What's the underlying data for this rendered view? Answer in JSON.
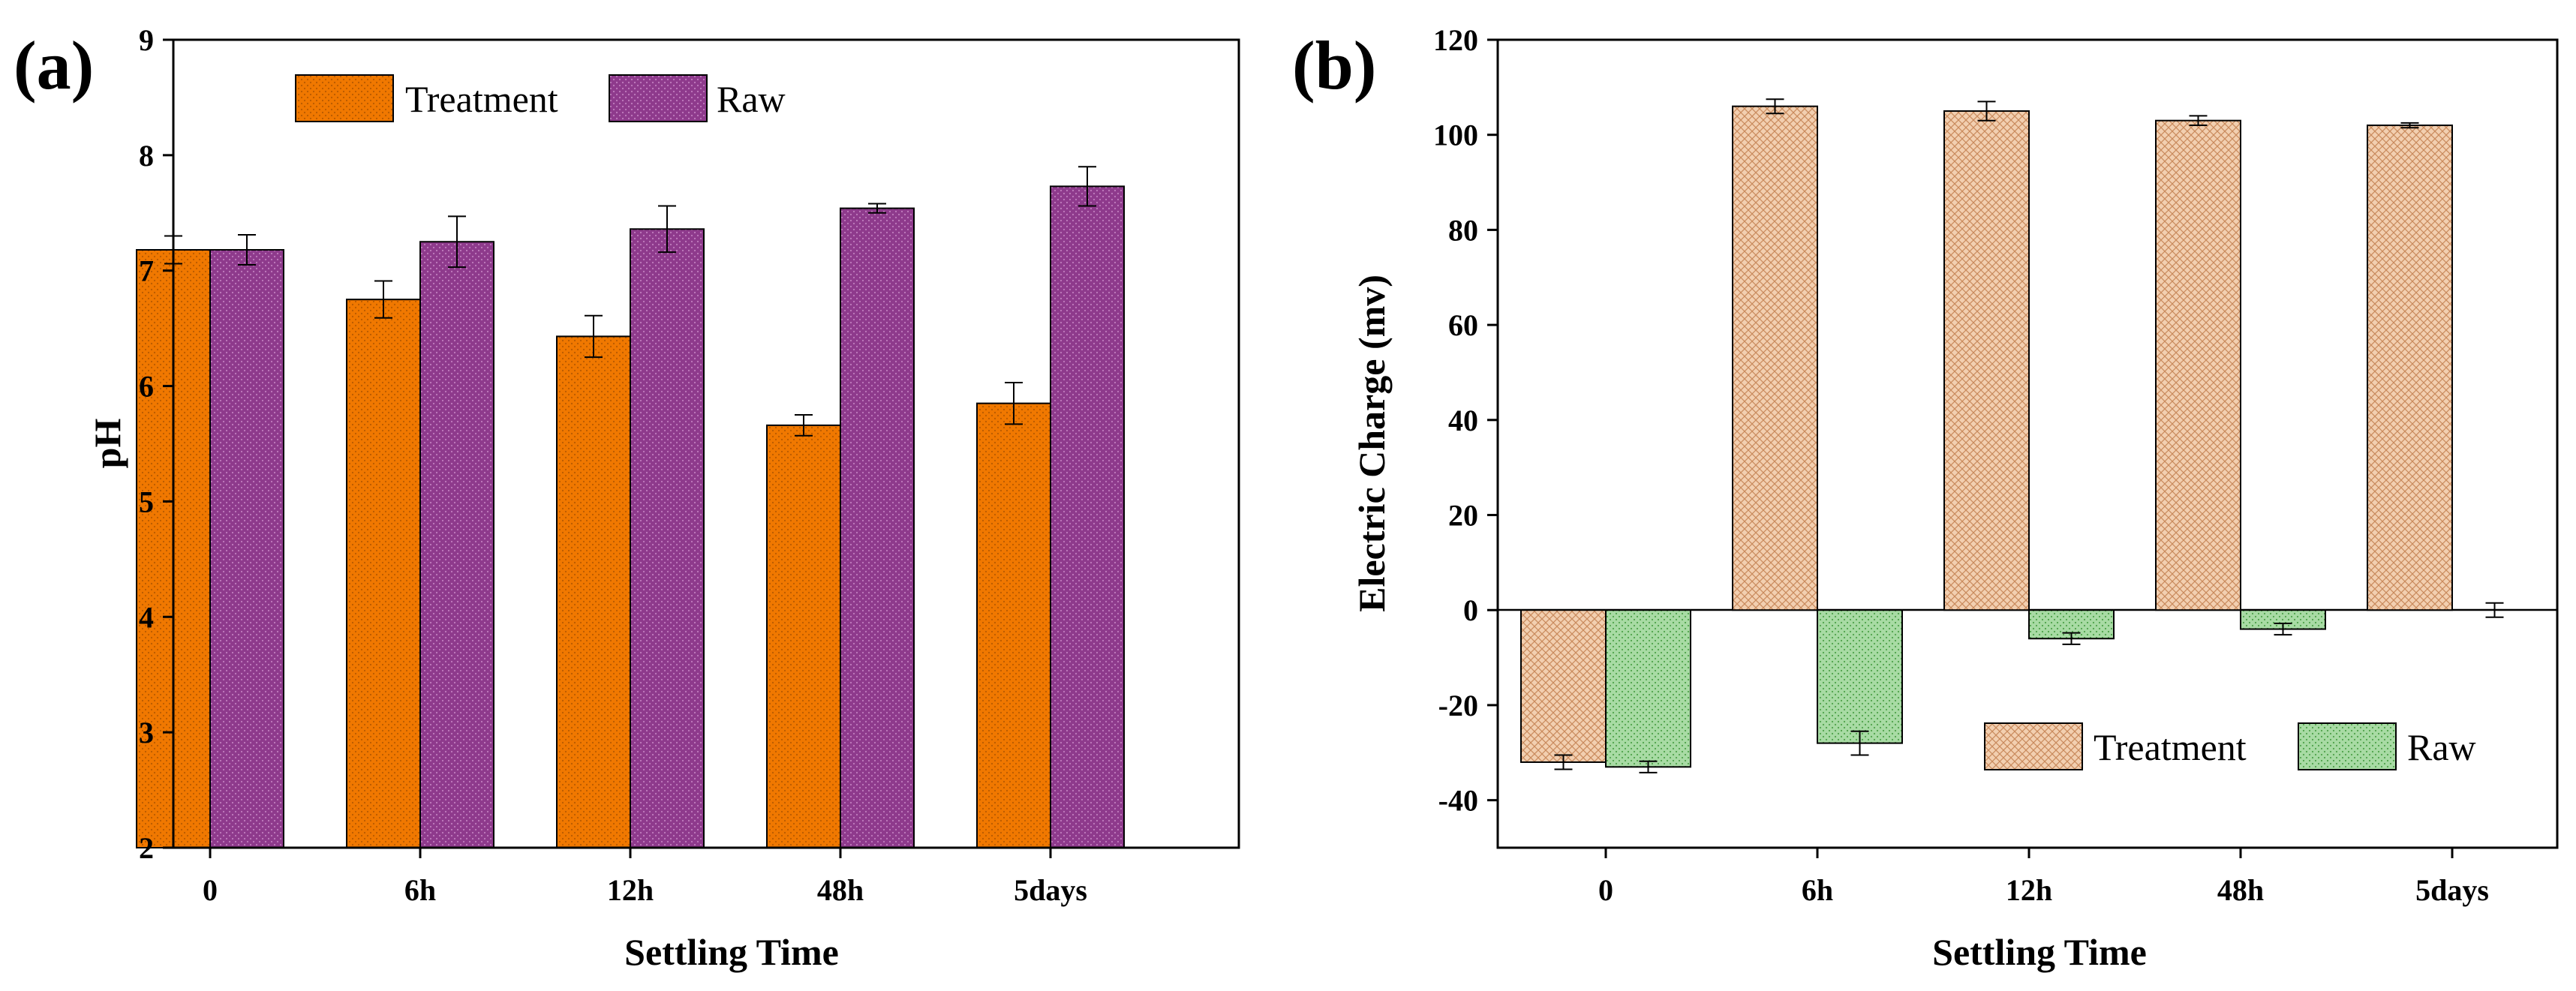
{
  "chart_data": [
    {
      "id": "a",
      "type": "bar",
      "panel_label": "(a)",
      "title": "",
      "xlabel": "Settling Time",
      "ylabel": "pH",
      "categories": [
        "0",
        "6h",
        "12h",
        "48h",
        "5days"
      ],
      "ylim": [
        2,
        9
      ],
      "yticks": [
        2,
        3,
        4,
        5,
        6,
        7,
        8,
        9
      ],
      "grid": false,
      "legend": {
        "position": "top-left",
        "entries": [
          "Treatment",
          "Raw"
        ]
      },
      "series": [
        {
          "name": "Treatment",
          "color": "#f07800",
          "pattern": "dots",
          "values": [
            7.18,
            6.75,
            6.43,
            5.66,
            5.85
          ],
          "errors": [
            0.12,
            0.16,
            0.18,
            0.09,
            0.18
          ]
        },
        {
          "name": "Raw",
          "color": "#8e3a8c",
          "pattern": "dots",
          "values": [
            7.18,
            7.25,
            7.36,
            7.54,
            7.73
          ],
          "errors": [
            0.13,
            0.22,
            0.2,
            0.04,
            0.17
          ]
        }
      ]
    },
    {
      "id": "b",
      "type": "bar",
      "panel_label": "(b)",
      "title": "",
      "xlabel": "Settling Time",
      "ylabel": "Electric Charge (mv)",
      "categories": [
        "0",
        "6h",
        "12h",
        "48h",
        "5days"
      ],
      "ylim": [
        -50,
        120
      ],
      "yticks": [
        -40,
        -20,
        0,
        20,
        40,
        60,
        80,
        100,
        120
      ],
      "grid": false,
      "legend": {
        "position": "bottom-right",
        "entries": [
          "Treatment",
          "Raw"
        ]
      },
      "series": [
        {
          "name": "Treatment",
          "color": "#edbf9a",
          "pattern": "crosshatch",
          "values": [
            -32,
            106,
            105,
            103,
            102
          ],
          "errors": [
            1.5,
            1.5,
            2,
            1,
            0.5
          ]
        },
        {
          "name": "Raw",
          "color": "#9ed49a",
          "pattern": "dots",
          "values": [
            -33,
            -28,
            -6,
            -4,
            0
          ],
          "errors": [
            1.2,
            2.5,
            1.2,
            1.2,
            1.5
          ]
        }
      ]
    }
  ]
}
